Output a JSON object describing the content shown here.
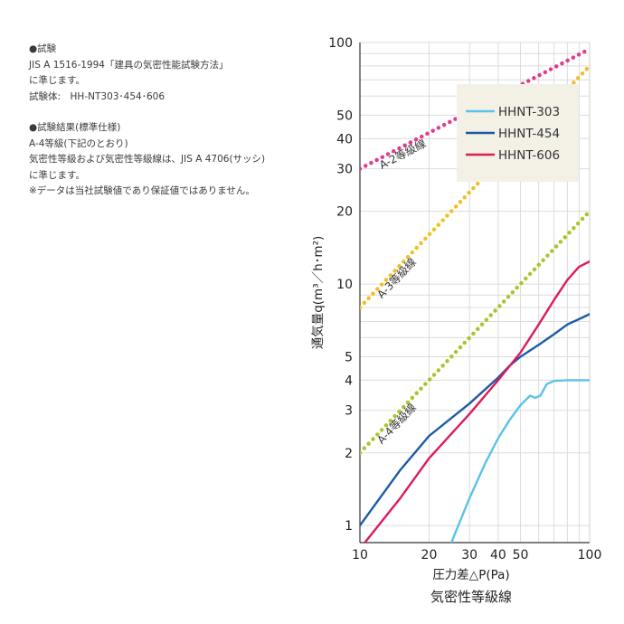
{
  "notes": {
    "test_heading": "●試験",
    "test_standard": "JIS A 1516-1994「建具の気密性能試験方法」",
    "test_conform": "に準じます。",
    "test_specimen": "試験体:　HH-NT303･454･606",
    "result_heading": "●試験結果(標準仕様)",
    "result_grade": "A-4等級(下記のとおり)",
    "result_lines": "気密性等級および気密性等級線は、JIS A 4706(サッシ)",
    "result_conform": "に準じます。",
    "disclaimer": "※データは当社試験値であり保証値ではありません。"
  },
  "chart_data": {
    "type": "line",
    "xscale": "log",
    "yscale": "log",
    "xlim": [
      10,
      100
    ],
    "ylim": [
      0.85,
      100
    ],
    "xticks": [
      "10",
      "20",
      "30",
      "40",
      "50",
      "100"
    ],
    "yticks": [
      "1",
      "2",
      "3",
      "4",
      "5",
      "10",
      "20",
      "30",
      "40",
      "50",
      "100"
    ],
    "xlabel": "圧力差△P(Pa)",
    "ylabel": "通気量q(m³／h･m²)",
    "caption": "気密性等級線",
    "grid": true,
    "legend_position": "top-right",
    "grade_lines": [
      {
        "label": "A-2等級線",
        "color": "#e23b8c",
        "points": [
          [
            10,
            30
          ],
          [
            100,
            94
          ]
        ]
      },
      {
        "label": "A-3等級線",
        "color": "#f2bf24",
        "points": [
          [
            10,
            8
          ],
          [
            100,
            80
          ]
        ]
      },
      {
        "label": "A-4等級線",
        "color": "#a6c72c",
        "points": [
          [
            10,
            2
          ],
          [
            100,
            20
          ]
        ]
      }
    ],
    "series": [
      {
        "name": "HHNT-303",
        "color": "#5bc2ea",
        "points": [
          [
            25,
            0.85
          ],
          [
            30,
            1.3
          ],
          [
            35,
            1.8
          ],
          [
            40,
            2.3
          ],
          [
            45,
            2.75
          ],
          [
            50,
            3.15
          ],
          [
            55,
            3.45
          ],
          [
            58,
            3.38
          ],
          [
            61,
            3.45
          ],
          [
            65,
            3.85
          ],
          [
            70,
            3.97
          ],
          [
            80,
            4.0
          ],
          [
            100,
            4.0
          ]
        ]
      },
      {
        "name": "HHNT-454",
        "color": "#1c5aa6",
        "points": [
          [
            10,
            1.0
          ],
          [
            15,
            1.7
          ],
          [
            20,
            2.35
          ],
          [
            30,
            3.2
          ],
          [
            40,
            4.1
          ],
          [
            45,
            4.6
          ],
          [
            50,
            5.0
          ],
          [
            60,
            5.6
          ],
          [
            70,
            6.2
          ],
          [
            80,
            6.8
          ],
          [
            100,
            7.5
          ]
        ]
      },
      {
        "name": "HHNT-606",
        "color": "#dc1a5c",
        "points": [
          [
            10.5,
            0.85
          ],
          [
            15,
            1.3
          ],
          [
            20,
            1.9
          ],
          [
            30,
            2.9
          ],
          [
            40,
            4.0
          ],
          [
            50,
            5.2
          ],
          [
            60,
            6.8
          ],
          [
            70,
            8.6
          ],
          [
            80,
            10.4
          ],
          [
            90,
            11.8
          ],
          [
            100,
            12.4
          ]
        ]
      }
    ]
  }
}
